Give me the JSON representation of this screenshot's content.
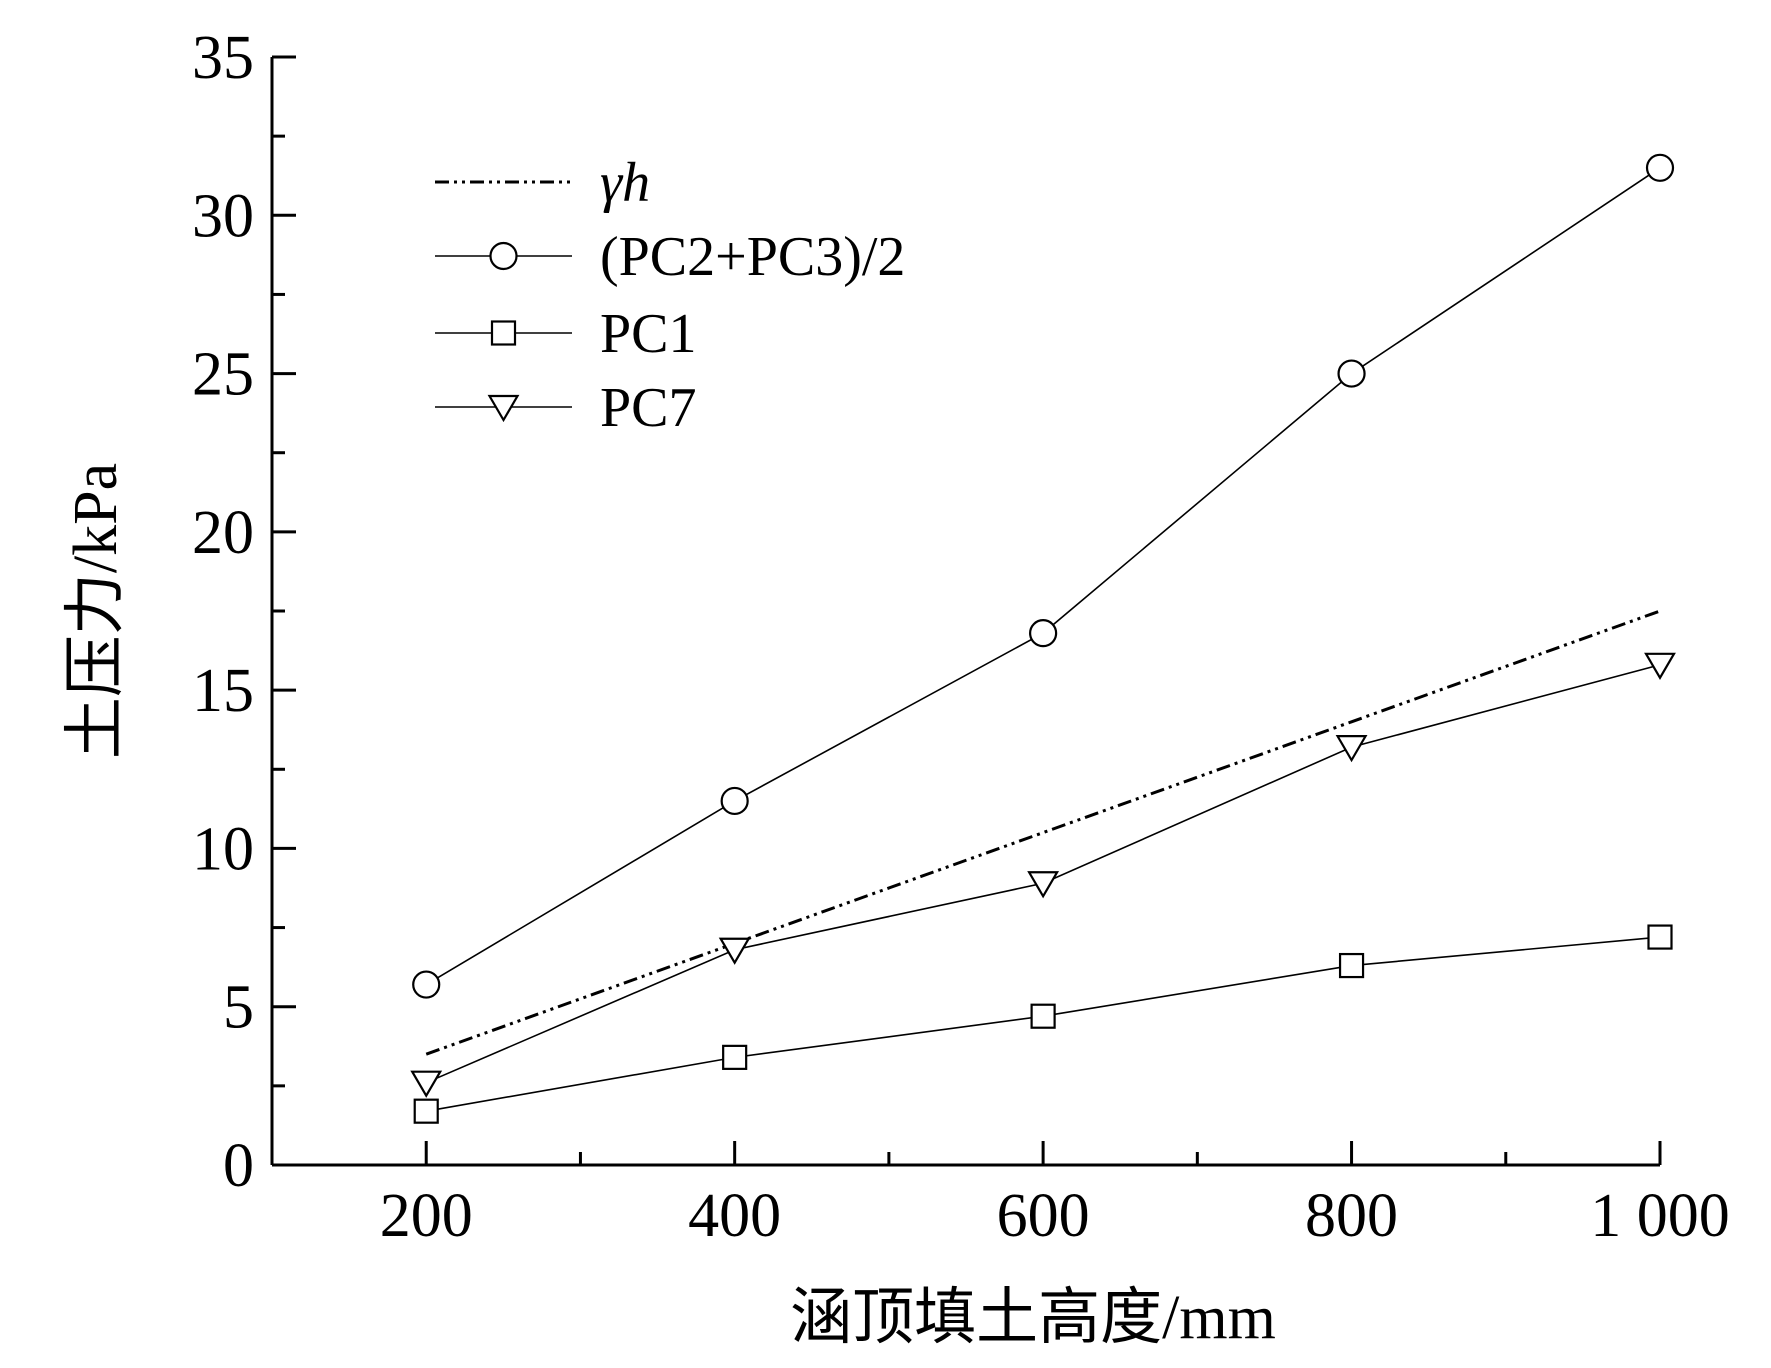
{
  "chart_data": {
    "type": "line",
    "title": "",
    "xlabel": "涵顶填土高度/mm",
    "ylabel": "土压力/kPa",
    "x": [
      200,
      400,
      600,
      800,
      1000
    ],
    "x_tick_labels": [
      "200",
      "400",
      "600",
      "800",
      "1 000"
    ],
    "y_tick_labels": [
      "0",
      "5",
      "10",
      "15",
      "20",
      "25",
      "30",
      "35"
    ],
    "xlim": [
      100,
      1000
    ],
    "ylim": [
      0,
      35
    ],
    "grid": false,
    "legend_position": "top-left",
    "series": [
      {
        "name": "γh",
        "marker": "none",
        "line_style": "dash-dot-dot",
        "values": [
          3.5,
          7.0,
          10.5,
          14.0,
          17.5
        ]
      },
      {
        "name": "(PC2+PC3)/2",
        "marker": "circle",
        "line_style": "solid",
        "values": [
          5.7,
          11.5,
          16.8,
          25.0,
          31.5
        ]
      },
      {
        "name": "PC1",
        "marker": "square",
        "line_style": "solid",
        "values": [
          1.7,
          3.4,
          4.7,
          6.3,
          7.2
        ]
      },
      {
        "name": "PC7",
        "marker": "triangle-down",
        "line_style": "solid",
        "values": [
          2.6,
          6.8,
          8.9,
          13.2,
          15.8
        ]
      }
    ]
  }
}
